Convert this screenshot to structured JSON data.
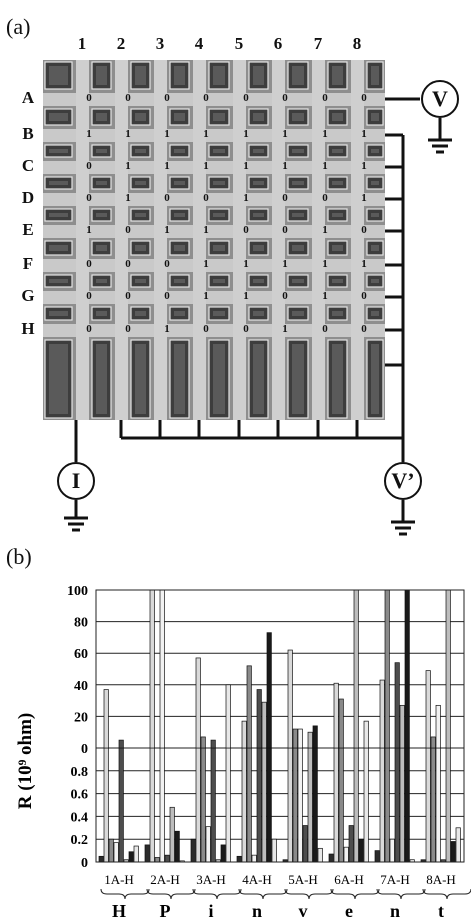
{
  "panel_a": {
    "label": "(a)",
    "columns": [
      "1",
      "2",
      "3",
      "4",
      "5",
      "6",
      "7",
      "8"
    ],
    "rows": [
      "A",
      "B",
      "C",
      "D",
      "E",
      "F",
      "G",
      "H"
    ],
    "bits": [
      [
        "0",
        "0",
        "0",
        "0",
        "0",
        "0",
        "0",
        "0"
      ],
      [
        "1",
        "1",
        "1",
        "1",
        "1",
        "1",
        "1",
        "1"
      ],
      [
        "0",
        "1",
        "1",
        "1",
        "1",
        "1",
        "1",
        "1"
      ],
      [
        "0",
        "1",
        "0",
        "0",
        "1",
        "0",
        "0",
        "1"
      ],
      [
        "1",
        "0",
        "1",
        "1",
        "0",
        "0",
        "1",
        "0"
      ],
      [
        "0",
        "0",
        "0",
        "1",
        "1",
        "1",
        "1",
        "1"
      ],
      [
        "0",
        "0",
        "0",
        "1",
        "1",
        "0",
        "1",
        "0"
      ],
      [
        "0",
        "0",
        "1",
        "0",
        "0",
        "1",
        "0",
        "0"
      ]
    ],
    "meters": {
      "v": "V",
      "v_prime": "V’",
      "i": "I"
    }
  },
  "panel_b": {
    "label": "(b)"
  },
  "chart_data": {
    "type": "bar",
    "ylabel": "R (10⁹ ohm)",
    "y_axis_note": "broken axis: lower segment 0–1 linear, upper segment 0–100 linear",
    "ylim_lower": [
      0,
      1
    ],
    "ylim_upper": [
      0,
      100
    ],
    "lower_ticks": [
      "0",
      "0.2",
      "0.4",
      "0.6",
      "0.8",
      "1"
    ],
    "upper_ticks": [
      "0",
      "20",
      "40",
      "60",
      "80",
      "100"
    ],
    "grid": true,
    "categories": [
      "1A-H",
      "2A-H",
      "3A-H",
      "4A-H",
      "5A-H",
      "6A-H",
      "7A-H",
      "8A-H"
    ],
    "letters": [
      "H",
      "P",
      "i",
      "n",
      "v",
      "e",
      "n",
      "t"
    ],
    "groups": [
      {
        "values": [
          0.05,
          37,
          0.2,
          0.17,
          5,
          0.02,
          0.09,
          0.14
        ]
      },
      {
        "values": [
          0.15,
          100,
          0.04,
          100,
          0.06,
          0.48,
          0.27,
          0.01
        ]
      },
      {
        "values": [
          0.2,
          57,
          7,
          0.31,
          5,
          0.02,
          0.15,
          40
        ]
      },
      {
        "values": [
          0.05,
          17,
          52,
          0.06,
          37,
          29,
          73,
          0.2
        ]
      },
      {
        "values": [
          0.02,
          62,
          12,
          12,
          0.32,
          10,
          14,
          0.12
        ]
      },
      {
        "values": [
          0.07,
          41,
          31,
          0.13,
          0.32,
          100,
          0.2,
          17
        ]
      },
      {
        "values": [
          0.1,
          43,
          100,
          0.2,
          54,
          27,
          100,
          0.02
        ]
      },
      {
        "values": [
          0.02,
          49,
          7,
          27,
          0.02,
          100,
          0.18,
          0.3
        ]
      }
    ]
  }
}
